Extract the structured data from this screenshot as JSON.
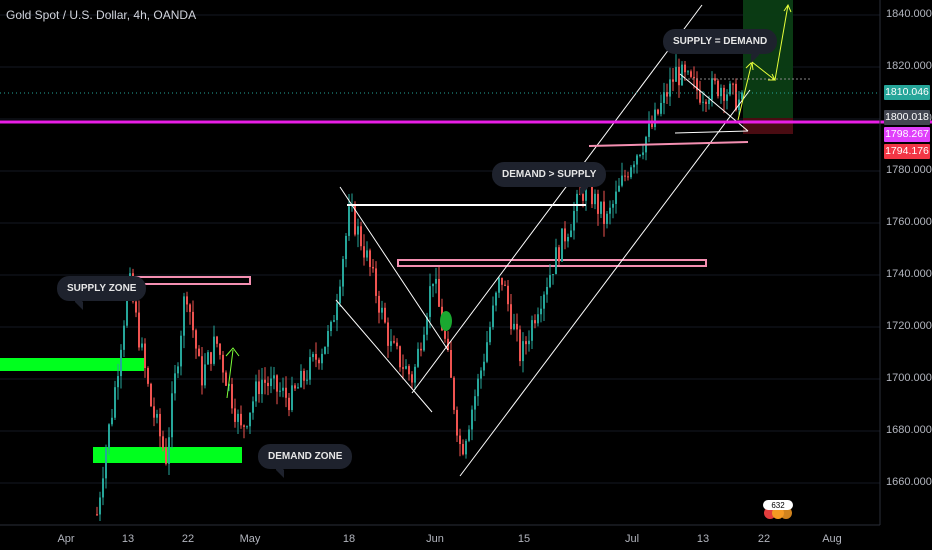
{
  "header": {
    "title": "Gold Spot / U.S. Dollar, 4h, OANDA"
  },
  "price_axis": {
    "ticks": [
      "1840.000",
      "1820.000",
      "1800.000",
      "1780.000",
      "1760.000",
      "1740.000",
      "1720.000",
      "1700.000",
      "1680.000",
      "1660.000"
    ],
    "badges": [
      {
        "label": "1810.046",
        "value": 1810.046,
        "color": "#26a69a"
      },
      {
        "label": "1800.018",
        "value": 1800.018,
        "color": "#434651"
      },
      {
        "label": "1798.267",
        "value": 1798.267,
        "color": "#e040fb"
      },
      {
        "label": "1794.176",
        "value": 1794.176,
        "color": "#f23645"
      }
    ]
  },
  "time_axis": {
    "ticks": [
      "Apr",
      "13",
      "22",
      "May",
      "18",
      "Jun",
      "15",
      "Jul",
      "13",
      "22",
      "Aug"
    ]
  },
  "annotations": {
    "supply_zone": "SUPPLY ZONE",
    "demand_zone": "DEMAND ZONE",
    "demand_gt_supply": "DEMAND > SUPPLY",
    "supply_eq_demand": "SUPPLY = DEMAND"
  },
  "logo": {
    "label": "632"
  },
  "colors": {
    "up": "#26a69a",
    "down": "#ef5350",
    "magenta": "#e91ee6",
    "green_zone": "#00ff1e",
    "zone_pink": "#f48fb1",
    "white": "#ffffff"
  },
  "chart_data": {
    "type": "candlestick",
    "symbol": "Gold Spot / U.S. Dollar",
    "interval": "4h",
    "source": "OANDA",
    "ylim": [
      1645,
      1850
    ],
    "key_levels": {
      "horizontal_magenta": 1800.018,
      "last_price": 1810.046
    },
    "path": [
      [
        "Apr 7",
        1648
      ],
      [
        "Apr 9",
        1672
      ],
      [
        "Apr 11",
        1690
      ],
      [
        "Apr 13",
        1715
      ],
      [
        "Apr 15",
        1738
      ],
      [
        "Apr 18",
        1712
      ],
      [
        "Apr 20",
        1690
      ],
      [
        "Apr 22",
        1670
      ],
      [
        "Apr 24",
        1736
      ],
      [
        "Apr 27",
        1700
      ],
      [
        "Apr 29",
        1715
      ],
      [
        "May 3",
        1680
      ],
      [
        "May 6",
        1700
      ],
      [
        "May 10",
        1692
      ],
      [
        "May 14",
        1718
      ],
      [
        "May 18",
        1765
      ],
      [
        "May 22",
        1748
      ],
      [
        "May 26",
        1712
      ],
      [
        "May 29",
        1700
      ],
      [
        "Jun 1",
        1740
      ],
      [
        "Jun 4",
        1712
      ],
      [
        "Jun 8",
        1672
      ],
      [
        "Jun 11",
        1700
      ],
      [
        "Jun 14",
        1740
      ],
      [
        "Jun 17",
        1708
      ],
      [
        "Jun 20",
        1728
      ],
      [
        "Jun 24",
        1752
      ],
      [
        "Jun 27",
        1775
      ],
      [
        "Jun 30",
        1760
      ],
      [
        "Jul 3",
        1784
      ],
      [
        "Jul 7",
        1796
      ],
      [
        "Jul 9",
        1818
      ],
      [
        "Jul 12",
        1810
      ],
      [
        "Jul 15",
        1813
      ],
      [
        "Jul 18",
        1806
      ]
    ]
  }
}
